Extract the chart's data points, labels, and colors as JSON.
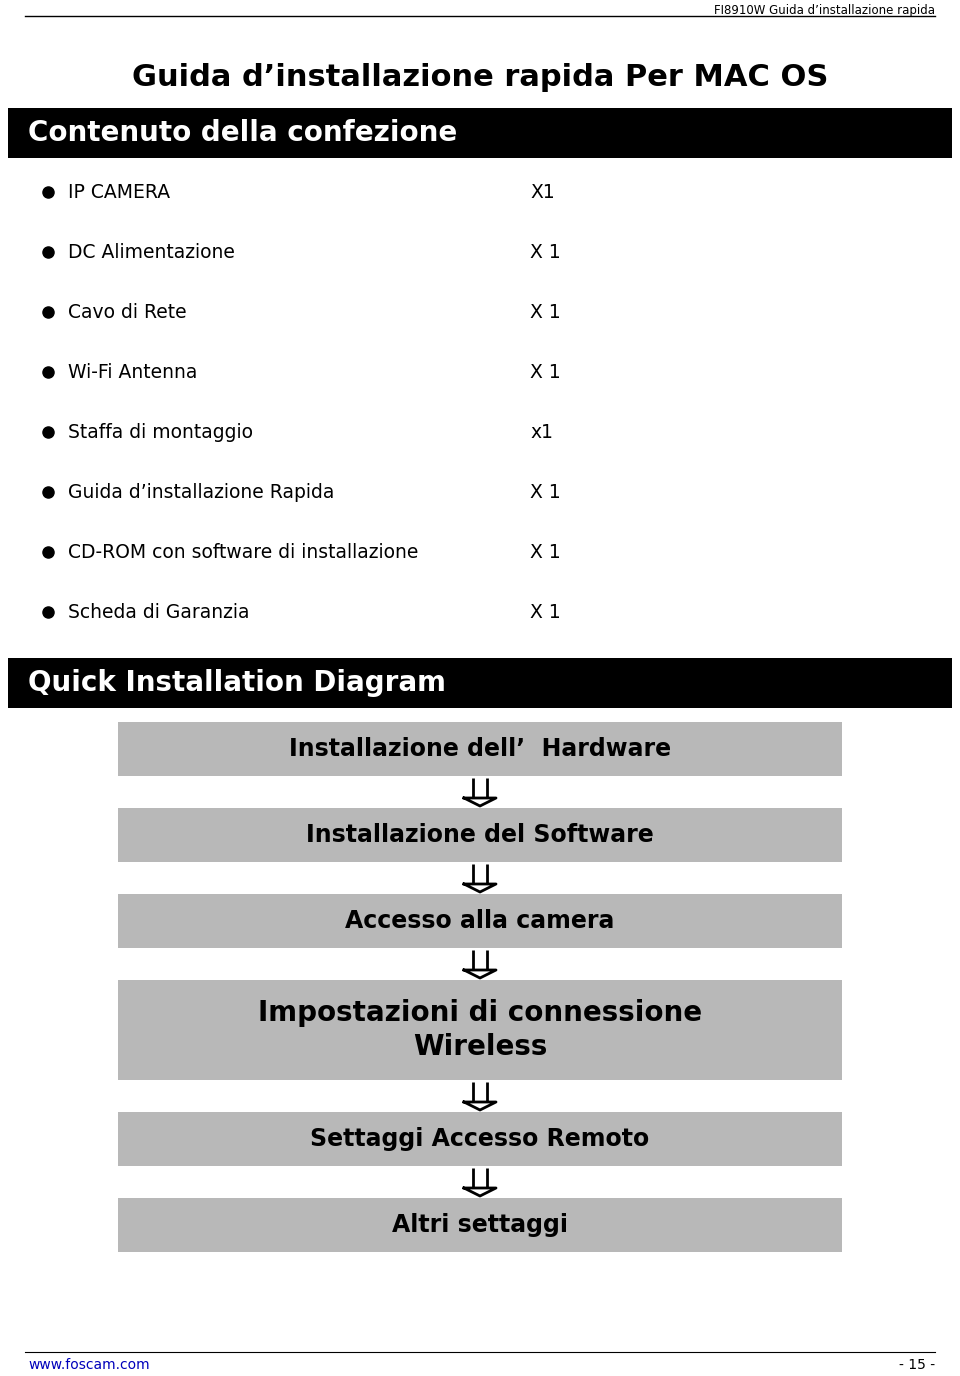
{
  "page_width": 9.6,
  "page_height": 13.76,
  "bg_color": "#ffffff",
  "header_text": "FI8910W Guida d’installazione rapida",
  "main_title": "Guida d’installazione rapida Per MAC OS",
  "section1_bg": "#000000",
  "section1_text": "Contenuto della confezione",
  "section1_text_color": "#ffffff",
  "bullet_items": [
    [
      "IP CAMERA",
      "X1"
    ],
    [
      "DC Alimentazione",
      "X 1"
    ],
    [
      "Cavo di Rete",
      "X 1"
    ],
    [
      "Wi-Fi Antenna",
      "X 1"
    ],
    [
      "Staffa di montaggio",
      "x1"
    ],
    [
      "Guida d’installazione Rapida",
      "X 1"
    ],
    [
      "CD-ROM con software di installazione",
      "X 1"
    ],
    [
      "Scheda di Garanzia",
      "X 1"
    ]
  ],
  "section2_bg": "#000000",
  "section2_text": "Quick Installation Diagram",
  "section2_text_color": "#ffffff",
  "flow_boxes": [
    "Installazione dell’  Hardware",
    "Installazione del Software",
    "Accesso alla camera",
    "Impostazioni di connessione\nWireless",
    "Settaggi Accesso Remoto",
    "Altri settaggi"
  ],
  "flow_box_color": "#b8b8b8",
  "flow_box_text_color": "#000000",
  "footer_link": "www.foscam.com",
  "footer_page": "- 15 -"
}
